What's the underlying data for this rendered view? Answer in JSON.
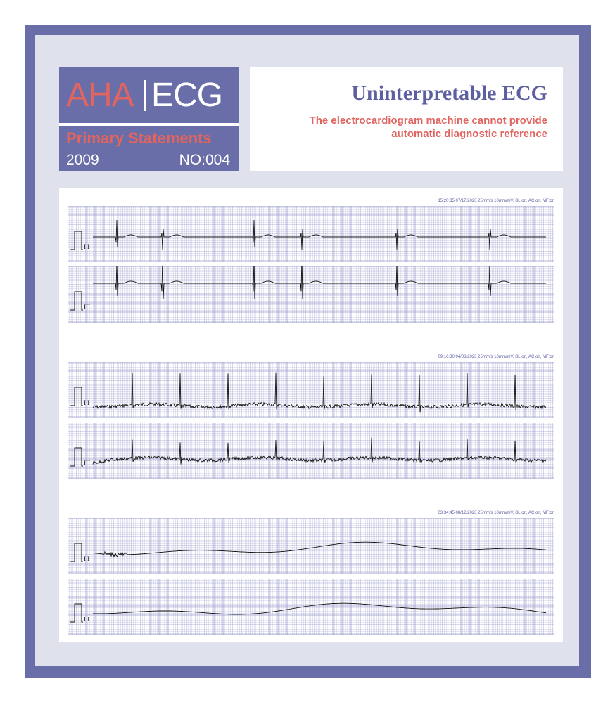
{
  "header": {
    "logo_aha": "AHA",
    "logo_ecg": "ECG",
    "series": "Primary Statements",
    "year": "2009",
    "number": "NO:004",
    "title": "Uninterpretable ECG",
    "subtitle_line1": "The electrocardiogram machine cannot provide",
    "subtitle_line2": "automatic diagnostic reference"
  },
  "colors": {
    "frame": "#6a6ea8",
    "accent": "#e06460",
    "grid": "#9a9ccc",
    "trace": "#111111"
  },
  "recordings": [
    {
      "meta": "15:20:35 07/17/2023 25mm/s 10mm/mV, BL:on, AC:on, MF:on",
      "strips": [
        {
          "lead": "I I",
          "pattern": "irregular"
        },
        {
          "lead": "III",
          "pattern": "irregular"
        }
      ]
    },
    {
      "meta": "09:16:30 04/08/2023 25mm/s 10mm/mV, BL:on, AC:on, MF:on",
      "strips": [
        {
          "lead": "I I",
          "pattern": "noisy"
        },
        {
          "lead": "III",
          "pattern": "noisy"
        }
      ]
    },
    {
      "meta": "03:34:45 08/12/2023 25mm/s 10mm/mV, BL:on, AC:on, MF:on",
      "strips": [
        {
          "lead": "I I",
          "pattern": "wandering"
        },
        {
          "lead": "I I",
          "pattern": "wandering"
        }
      ]
    }
  ]
}
